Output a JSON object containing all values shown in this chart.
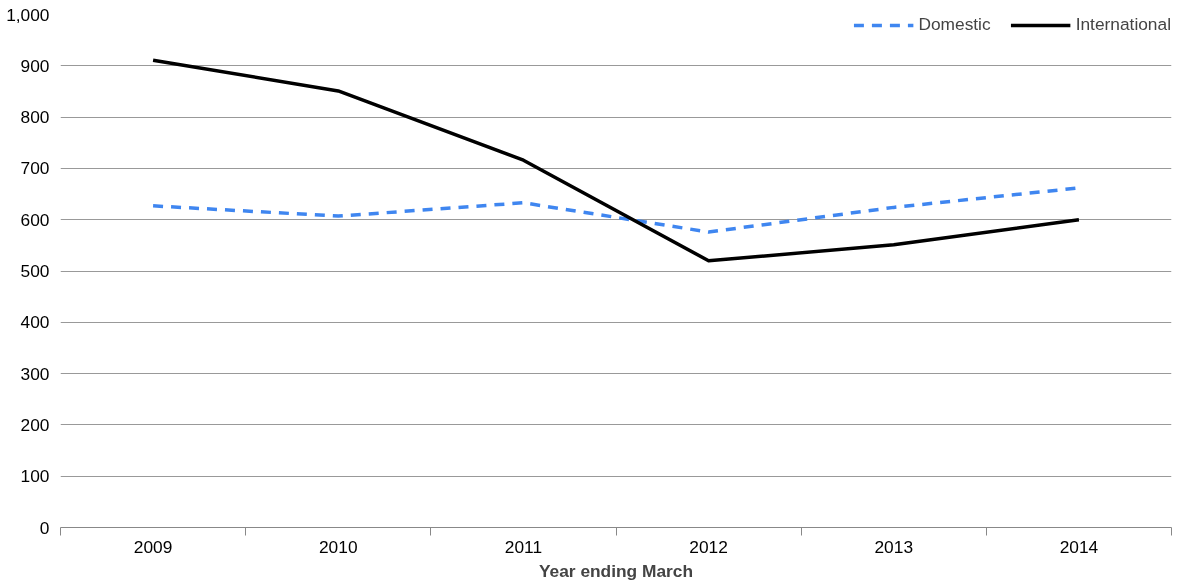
{
  "chart_data": {
    "type": "line",
    "xlabel": "Year ending March",
    "categories": [
      "2009",
      "2010",
      "2011",
      "2012",
      "2013",
      "2014"
    ],
    "series": [
      {
        "name": "Domestic",
        "color": "#3f86f0",
        "line_style": "dashed",
        "values": [
          627,
          607,
          633,
          576,
          624,
          662
        ]
      },
      {
        "name": "International",
        "color": "#000000",
        "line_style": "solid",
        "values": [
          911,
          851,
          716,
          520,
          551,
          600
        ]
      }
    ],
    "ylim": [
      0,
      1000
    ],
    "yticks": [
      0,
      100,
      200,
      300,
      400,
      500,
      600,
      700,
      800,
      900,
      {
        "value": 1000,
        "label": "1,000"
      }
    ],
    "grid": "y",
    "legend": "top right",
    "marker": "none"
  }
}
